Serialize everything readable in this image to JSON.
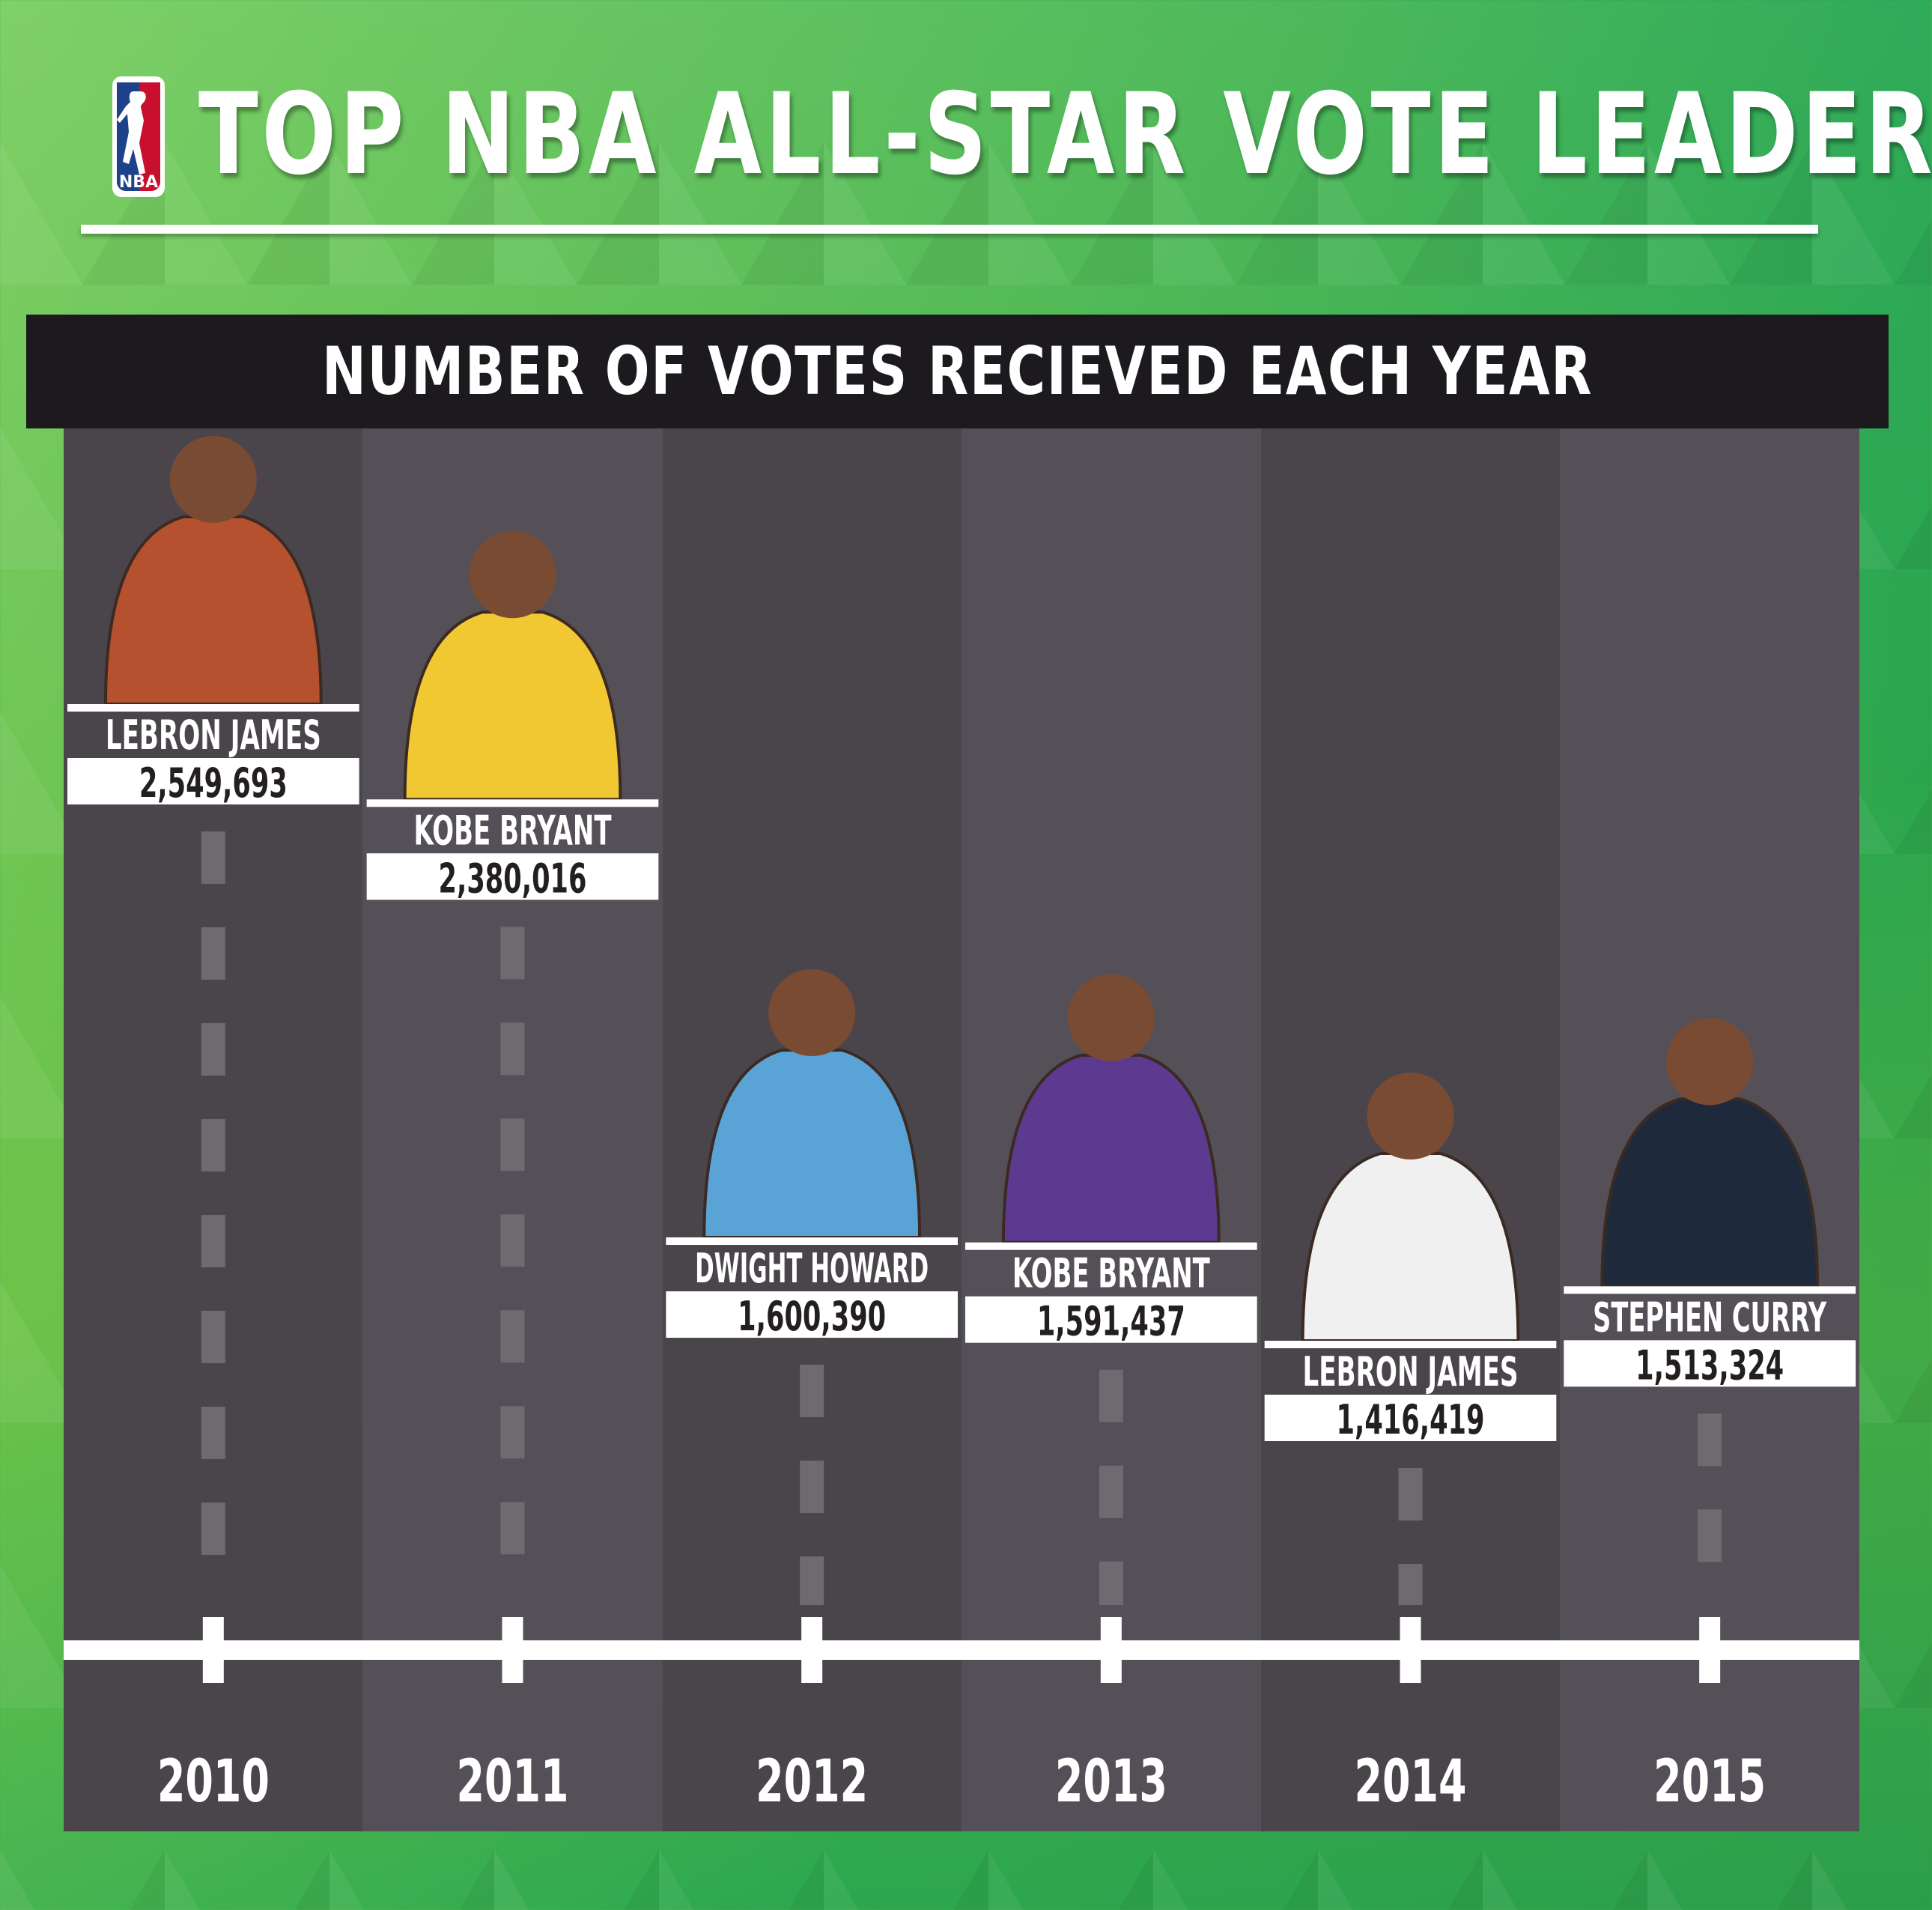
{
  "header": {
    "logo_text": "NBA",
    "title": "TOP NBA ALL-STAR VOTE LEADERS"
  },
  "colors": {
    "panel_dark": "#4a444b",
    "panel_light": "#555057",
    "header_bar": "#1d1a1f",
    "green_bg": "#2fae5a",
    "white": "#ffffff"
  },
  "chart_data": {
    "type": "bar",
    "title": "NUMBER OF VOTES RECIEVED EACH YEAR",
    "xlabel": "",
    "ylabel": "",
    "grid": false,
    "legend": "none",
    "categories": [
      "2010",
      "2011",
      "2012",
      "2013",
      "2014",
      "2015"
    ],
    "values": [
      2549693,
      2380016,
      1600390,
      1591437,
      1416419,
      1513324
    ],
    "value_labels": [
      "2,549,693",
      "2,380,016",
      "1,600,390",
      "1,591,437",
      "1,416,419",
      "1,513,324"
    ],
    "players": [
      "LEBRON JAMES",
      "KOBE BRYANT",
      "DWIGHT HOWARD",
      "KOBE BRYANT",
      "LEBRON JAMES",
      "STEPHEN CURRY"
    ],
    "ylim": [
      0,
      2549693
    ]
  }
}
